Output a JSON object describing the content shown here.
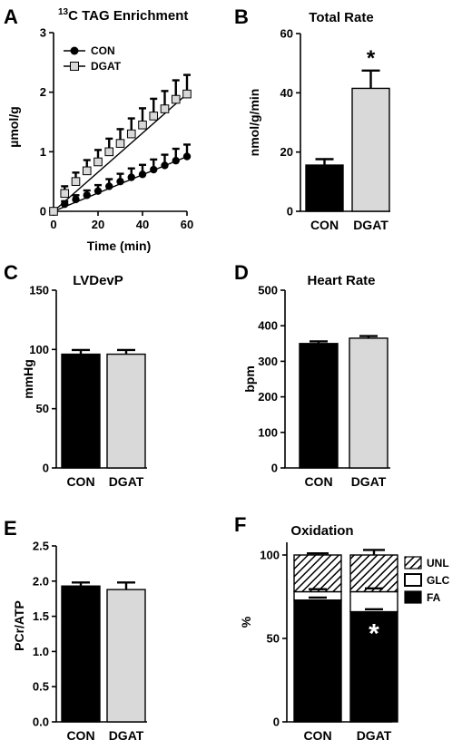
{
  "panel_labels": [
    "A",
    "B",
    "C",
    "D",
    "E",
    "F"
  ],
  "chart_data": [
    {
      "panel": "A",
      "type": "line",
      "title_prefix": "13",
      "title": "C TAG Enrichment",
      "xlabel": "Time (min)",
      "ylabel": "µmol/g",
      "xlim": [
        0,
        60
      ],
      "ylim": [
        0,
        3
      ],
      "xticks": [
        0,
        20,
        40,
        60
      ],
      "yticks": [
        0,
        1,
        2,
        3
      ],
      "legend_position": "top-left",
      "series": [
        {
          "name": "CON",
          "marker": "circle",
          "x": [
            0,
            5,
            10,
            15,
            20,
            25,
            30,
            35,
            40,
            45,
            50,
            55,
            60
          ],
          "y": [
            0,
            0.12,
            0.2,
            0.27,
            0.34,
            0.42,
            0.5,
            0.57,
            0.62,
            0.7,
            0.77,
            0.85,
            0.92
          ],
          "err": [
            0.02,
            0.05,
            0.07,
            0.08,
            0.1,
            0.12,
            0.13,
            0.15,
            0.16,
            0.17,
            0.18,
            0.2,
            0.2
          ]
        },
        {
          "name": "DGAT",
          "marker": "square",
          "x": [
            0,
            5,
            10,
            15,
            20,
            25,
            30,
            35,
            40,
            45,
            50,
            55,
            60
          ],
          "y": [
            0,
            0.3,
            0.5,
            0.68,
            0.83,
            1.0,
            1.14,
            1.3,
            1.45,
            1.6,
            1.72,
            1.88,
            1.97
          ],
          "err": [
            0.02,
            0.12,
            0.15,
            0.18,
            0.2,
            0.22,
            0.24,
            0.26,
            0.28,
            0.29,
            0.3,
            0.32,
            0.32
          ]
        }
      ],
      "fits": [
        {
          "series": "CON",
          "x": [
            0,
            60
          ],
          "y": [
            0,
            0.92
          ]
        },
        {
          "series": "DGAT",
          "x": [
            0,
            60
          ],
          "y": [
            0,
            1.97
          ]
        }
      ]
    },
    {
      "panel": "B",
      "type": "bar",
      "title": "Total Rate",
      "ylabel": "nmol/g/min",
      "categories": [
        "CON",
        "DGAT"
      ],
      "values": [
        15.6,
        41.5
      ],
      "errors": [
        2.0,
        6.0
      ],
      "colors": [
        "#000000",
        "#d9d9d9"
      ],
      "ylim": [
        0,
        60
      ],
      "yticks": [
        0,
        20,
        40,
        60
      ],
      "annotations": [
        {
          "category": "DGAT",
          "text": "*"
        }
      ]
    },
    {
      "panel": "C",
      "type": "bar",
      "title": "LVDevP",
      "ylabel": "mmHg",
      "categories": [
        "CON",
        "DGAT"
      ],
      "values": [
        96,
        96
      ],
      "errors": [
        3.5,
        3.5
      ],
      "colors": [
        "#000000",
        "#d9d9d9"
      ],
      "ylim": [
        0,
        150
      ],
      "yticks": [
        0,
        50,
        100,
        150
      ]
    },
    {
      "panel": "D",
      "type": "bar",
      "title": "Heart Rate",
      "ylabel": "bpm",
      "categories": [
        "CON",
        "DGAT"
      ],
      "values": [
        350,
        365
      ],
      "errors": [
        6,
        6
      ],
      "colors": [
        "#000000",
        "#d9d9d9"
      ],
      "ylim": [
        0,
        500
      ],
      "yticks": [
        0,
        100,
        200,
        300,
        400,
        500
      ]
    },
    {
      "panel": "E",
      "type": "bar",
      "ylabel": "PCr/ATP",
      "categories": [
        "CON",
        "DGAT"
      ],
      "values": [
        1.93,
        1.88
      ],
      "errors": [
        0.05,
        0.1
      ],
      "colors": [
        "#000000",
        "#d9d9d9"
      ],
      "ylim": [
        0,
        2.5
      ],
      "yticks": [
        "0.0",
        "0.5",
        "1.0",
        "1.5",
        "2.0",
        "2.5"
      ]
    },
    {
      "panel": "F",
      "type": "bar",
      "stacked": true,
      "title": "Oxidation",
      "ylabel": "%",
      "categories": [
        "CON",
        "DGAT"
      ],
      "ylim": [
        0,
        100
      ],
      "yticks": [
        0,
        50,
        100
      ],
      "legend_position": "right",
      "series": [
        {
          "name": "FA",
          "fill": "solid-black",
          "values": [
            73,
            66
          ],
          "errors": [
            1.5,
            1.5
          ]
        },
        {
          "name": "GLC",
          "fill": "white",
          "values": [
            5,
            12
          ],
          "errors": [
            1.5,
            2.0
          ]
        },
        {
          "name": "UNL",
          "fill": "hatched",
          "values": [
            22,
            22
          ],
          "errors": [
            1.0,
            3.0
          ]
        }
      ],
      "annotations": [
        {
          "category": "DGAT",
          "text": "*",
          "color": "#ffffff"
        }
      ]
    }
  ]
}
